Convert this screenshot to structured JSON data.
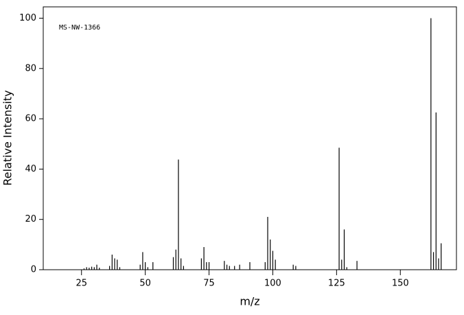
{
  "chart_data": {
    "type": "stem",
    "annotation": "MS-NW-1366",
    "xlabel": "m/z",
    "ylabel": "Relative Intensity",
    "x": [
      26,
      27,
      28,
      29,
      30,
      31,
      32,
      36,
      37,
      38,
      39,
      40,
      48,
      49,
      50,
      51,
      53,
      61,
      62,
      63,
      64,
      65,
      72,
      73,
      74,
      75,
      81,
      82,
      83,
      85,
      87,
      91,
      97,
      98,
      99,
      100,
      101,
      108,
      109,
      126,
      127,
      128,
      129,
      133,
      162,
      163,
      164,
      165,
      166
    ],
    "values": [
      0.5,
      1,
      0.8,
      1.2,
      1,
      2,
      0.8,
      1.5,
      6,
      4.5,
      4,
      1,
      2,
      7,
      3,
      1,
      3,
      5,
      8,
      43.8,
      4.5,
      1.5,
      4.5,
      9,
      3,
      3,
      3.5,
      2,
      1.5,
      1.5,
      2,
      3,
      3,
      21,
      12,
      7.5,
      4,
      2,
      1.5,
      48.5,
      4,
      16,
      1,
      3.5,
      100,
      7,
      62.5,
      4.5,
      10.5
    ],
    "color": "#000000",
    "xlim": [
      10,
      172
    ],
    "ylim": [
      0,
      104.5
    ],
    "xticks": [
      25,
      50,
      75,
      100,
      125,
      150
    ],
    "yticks": [
      0,
      20,
      40,
      60,
      80,
      100
    ]
  }
}
